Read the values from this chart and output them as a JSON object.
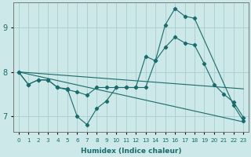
{
  "xlabel": "Humidex (Indice chaleur)",
  "bg_color": "#cce8e8",
  "grid_color": "#aacccc",
  "line_color": "#1a6b6b",
  "xlim": [
    -0.5,
    23.5
  ],
  "ylim": [
    6.65,
    9.55
  ],
  "xticks": [
    0,
    1,
    2,
    3,
    4,
    5,
    6,
    7,
    8,
    9,
    10,
    11,
    12,
    13,
    14,
    15,
    16,
    17,
    18,
    19,
    20,
    21,
    22,
    23
  ],
  "yticks": [
    7,
    8,
    9
  ],
  "lines": [
    {
      "x": [
        0,
        1,
        2,
        3,
        4,
        5,
        6,
        7,
        8,
        9,
        10,
        11,
        12,
        13,
        14,
        15,
        16,
        17,
        18,
        22,
        23
      ],
      "y": [
        8.0,
        7.72,
        7.82,
        7.82,
        7.65,
        7.62,
        7.0,
        6.82,
        7.18,
        7.35,
        7.65,
        7.65,
        7.65,
        8.35,
        8.25,
        9.05,
        9.42,
        9.25,
        9.2,
        7.25,
        6.9
      ],
      "marker": true
    },
    {
      "x": [
        0,
        1,
        2,
        3,
        4,
        5,
        6,
        7,
        8,
        9,
        10,
        11,
        12,
        13,
        14,
        15,
        16,
        17,
        18,
        19,
        20,
        21,
        22,
        23
      ],
      "y": [
        8.0,
        7.72,
        7.82,
        7.82,
        7.65,
        7.6,
        7.55,
        7.48,
        7.65,
        7.65,
        7.65,
        7.65,
        7.65,
        7.65,
        8.25,
        8.55,
        8.78,
        8.65,
        8.6,
        8.18,
        7.72,
        7.5,
        7.32,
        6.98
      ],
      "marker": true
    },
    {
      "x": [
        0,
        23
      ],
      "y": [
        8.0,
        7.62
      ],
      "marker": false
    },
    {
      "x": [
        0,
        23
      ],
      "y": [
        8.0,
        6.88
      ],
      "marker": false
    }
  ]
}
